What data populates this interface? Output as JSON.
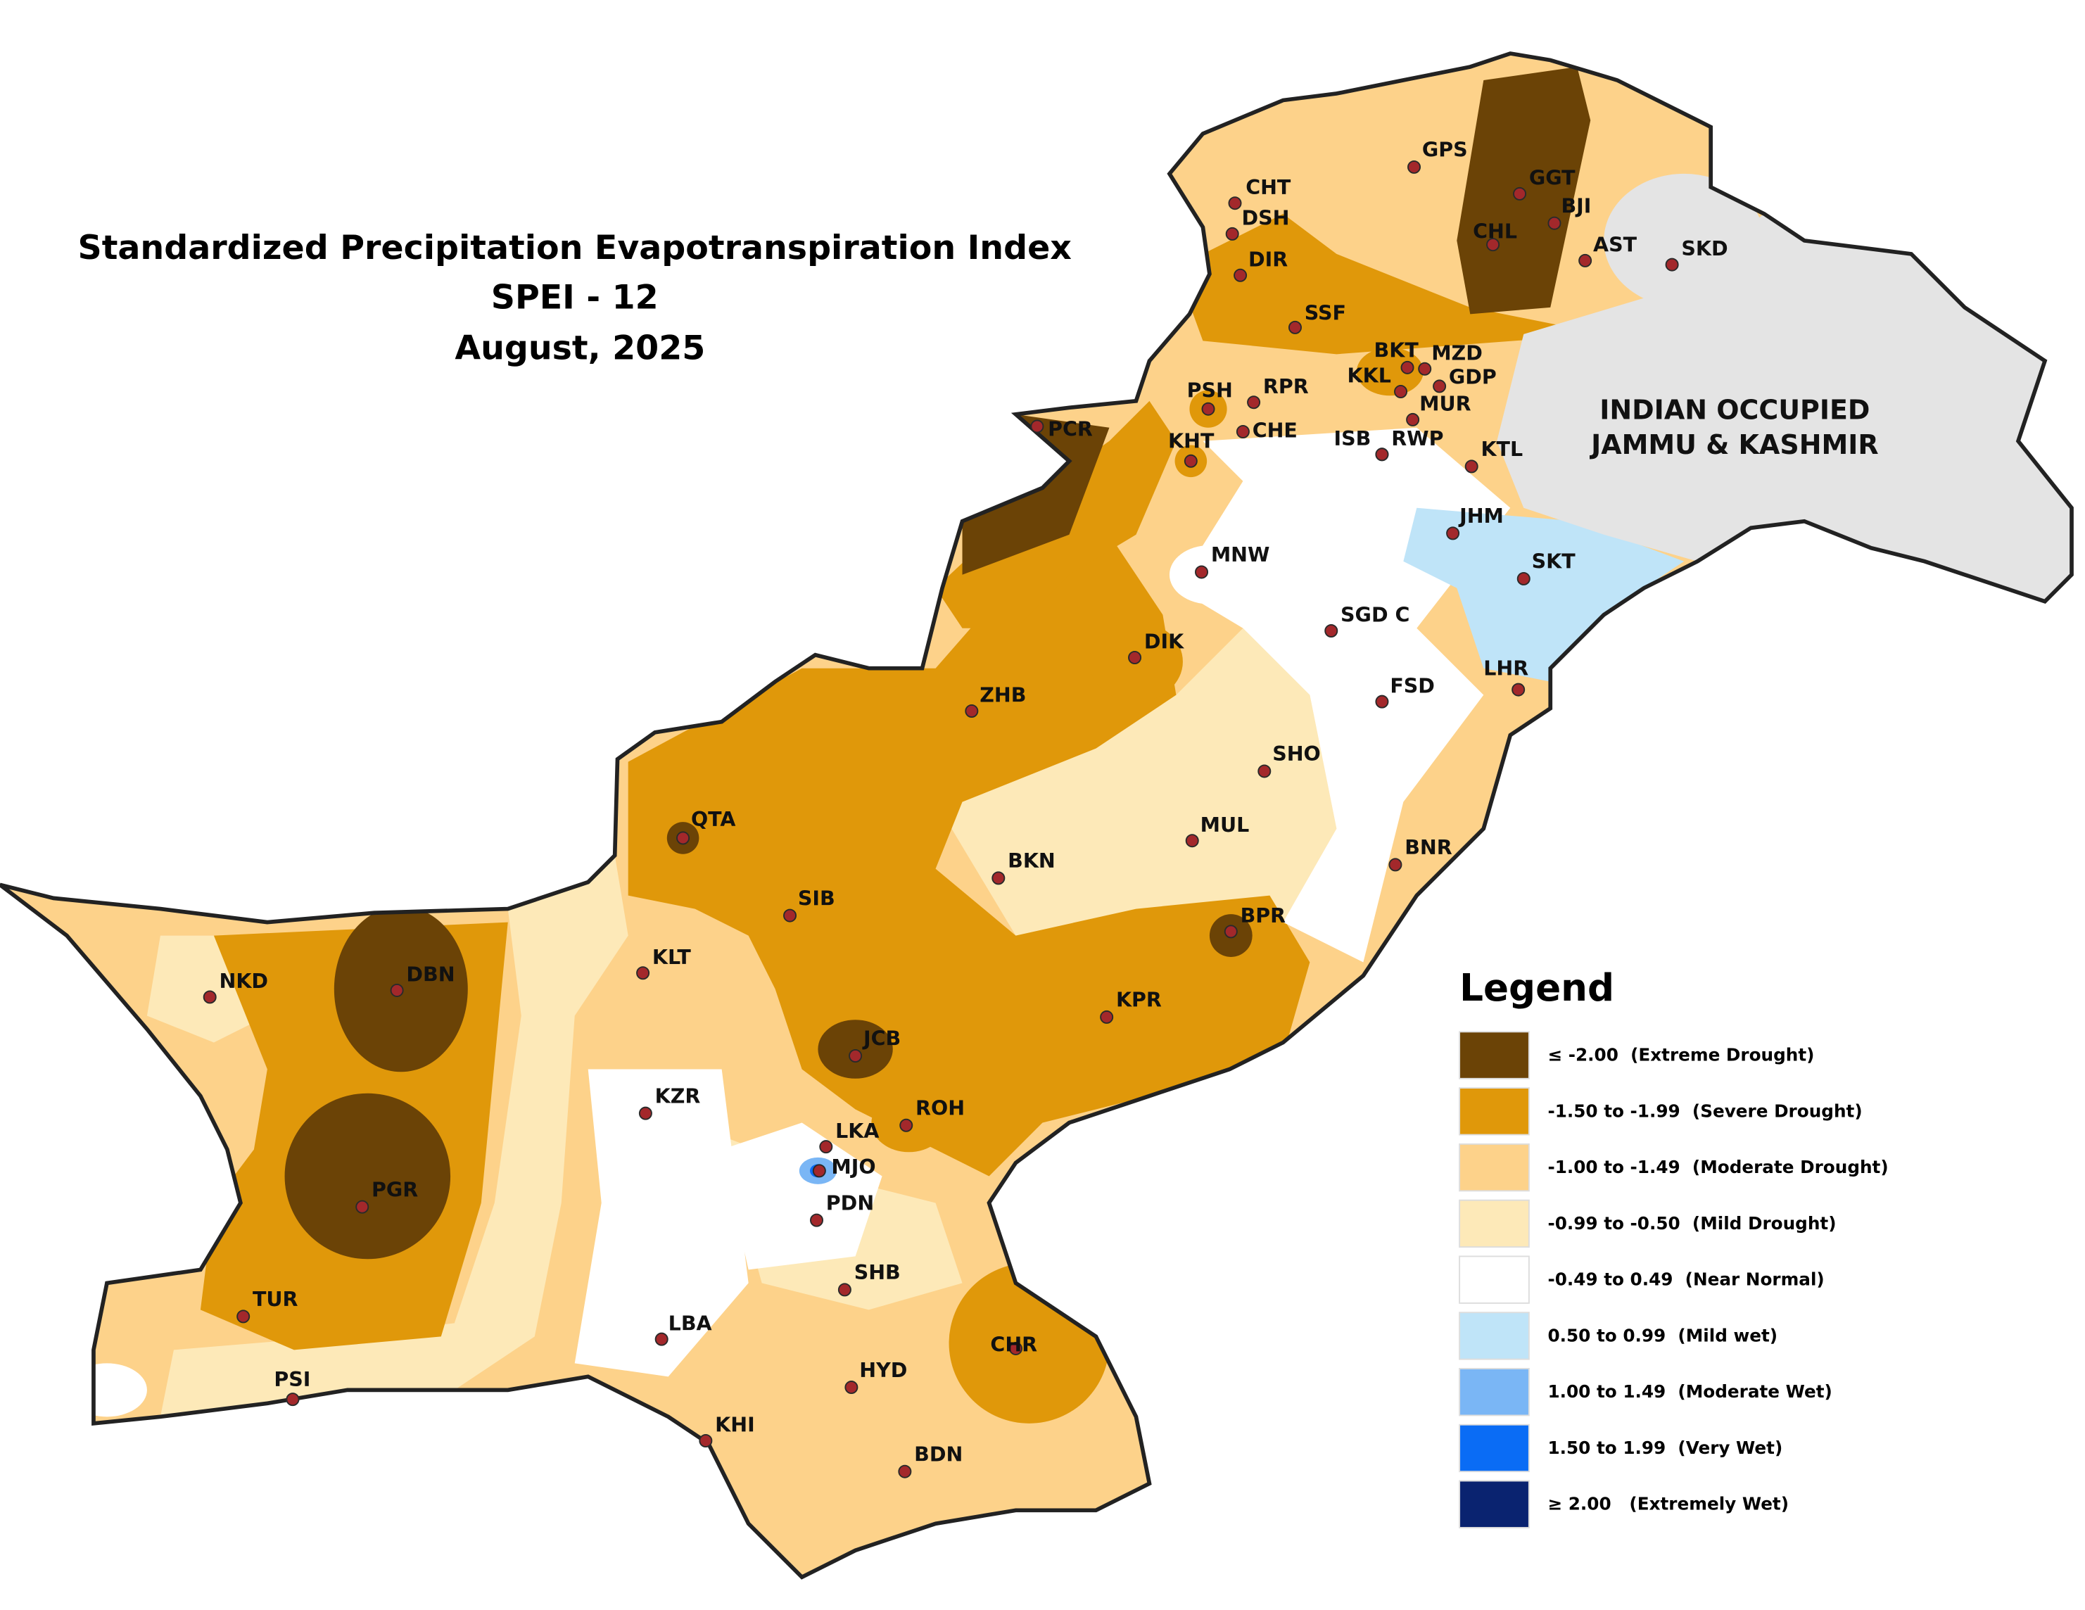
{
  "title": [
    "Standardized Precipitation Evapotranspiration Index",
    "SPEI - 12",
    "August, 2025"
  ],
  "region_label": [
    "INDIAN OCCUPIED",
    "JAMMU & KASHMIR"
  ],
  "stations": [
    "GPS",
    "CHT",
    "DSH",
    "GGT",
    "BJI",
    "CHL",
    "AST",
    "SKD",
    "DIR",
    "SSF",
    "BKT",
    "MZD",
    "KKL",
    "GDP",
    "MUR",
    "PSH",
    "RPR",
    "PCR",
    "KHT",
    "CHE",
    "ISB",
    "RWP",
    "KTL",
    "JHM",
    "SKT",
    "MNW",
    "SGD C",
    "DIK",
    "LHR",
    "FSD",
    "ZHB",
    "SHO",
    "QTA",
    "MUL",
    "BKN",
    "BNR",
    "SIB",
    "BPR",
    "KLT",
    "NKD",
    "DBN",
    "KPR",
    "JCB",
    "KZR",
    "ROH",
    "LKA",
    "MJO",
    "PGR",
    "PDN",
    "SHB",
    "TUR",
    "LBA",
    "CHR",
    "HYD",
    "PSI",
    "KHI",
    "BDN"
  ],
  "legend": {
    "title": "Legend",
    "items": [
      {
        "label": "≤ -2.00  (Extreme Drought)",
        "color": "#6b4306"
      },
      {
        "label": "-1.50 to -1.99  (Severe Drought)",
        "color": "#e0980a"
      },
      {
        "label": "-1.00 to -1.49  (Moderate Drought)",
        "color": "#fdd28a"
      },
      {
        "label": "-0.99 to -0.50  (Mild Drought)",
        "color": "#fde9b8"
      },
      {
        "label": "-0.49 to 0.49  (Near Normal)",
        "color": "#ffffff"
      },
      {
        "label": "0.50 to 0.99  (Mild wet)",
        "color": "#bfe4f8"
      },
      {
        "label": "1.00 to 1.49  (Moderate Wet)",
        "color": "#7ab6f5"
      },
      {
        "label": "1.50 to 1.99  (Very Wet)",
        "color": "#0a6cf5"
      },
      {
        "label": "≥ 2.00   (Extremely Wet)",
        "color": "#0a2370"
      }
    ]
  }
}
